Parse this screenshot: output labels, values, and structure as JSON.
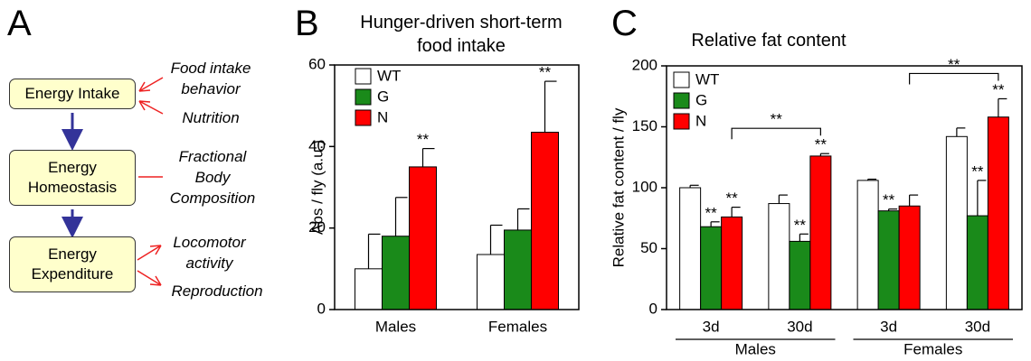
{
  "diagram": {
    "panel_label": "A",
    "nodes": [
      "Energy Intake",
      "Energy Homeostasis",
      "Energy Expenditure"
    ],
    "factors": [
      "Food intake behavior",
      "Nutrition",
      "Fractional Body Composition",
      "Locomotor activity",
      "Reproduction"
    ]
  },
  "chart_data": [
    {
      "panel_label": "B",
      "type": "bar",
      "title": "Hunger-driven short-term food intake",
      "y_label": "Abs / fly (a.u.)",
      "categories": [
        "Males",
        "Females"
      ],
      "ylim": [
        0,
        60
      ],
      "yticks": [
        0,
        20,
        40,
        60
      ],
      "legend": "upper left",
      "series": [
        {
          "name": "WT",
          "color": "#ffffff",
          "values": [
            10,
            13.5
          ],
          "errors": [
            8.5,
            7.2
          ],
          "significance": [
            null,
            null
          ]
        },
        {
          "name": "G",
          "color": "#1a8a1a",
          "values": [
            18,
            19.5
          ],
          "errors": [
            9.5,
            5.2
          ],
          "significance": [
            null,
            null
          ]
        },
        {
          "name": "N",
          "color": "#ff0000",
          "values": [
            35,
            43.5
          ],
          "errors": [
            4.5,
            12.5
          ],
          "significance": [
            "**",
            "**"
          ]
        }
      ]
    },
    {
      "panel_label": "C",
      "type": "bar",
      "title": "Relative fat content",
      "y_label": "Relative fat content / fly",
      "categories": [
        "3d",
        "30d",
        "3d",
        "30d"
      ],
      "groups": [
        "Males",
        "Females"
      ],
      "brackets": [
        "**",
        "**"
      ],
      "ylim": [
        0,
        200
      ],
      "yticks": [
        0,
        50,
        100,
        150,
        200
      ],
      "legend": "upper left",
      "series": [
        {
          "name": "WT",
          "color": "#ffffff",
          "values": [
            100,
            87,
            106,
            142
          ],
          "errors": [
            2,
            7,
            1,
            7
          ],
          "significance": [
            null,
            null,
            null,
            null
          ]
        },
        {
          "name": "G",
          "color": "#1a8a1a",
          "values": [
            68,
            56,
            81,
            77
          ],
          "errors": [
            4,
            6,
            1.5,
            29
          ],
          "significance": [
            "**",
            "**",
            "**",
            "**"
          ]
        },
        {
          "name": "N",
          "color": "#ff0000",
          "values": [
            76,
            126,
            85,
            158
          ],
          "errors": [
            8,
            2,
            9,
            15
          ],
          "significance": [
            "**",
            "**",
            null,
            "**"
          ]
        }
      ]
    }
  ]
}
